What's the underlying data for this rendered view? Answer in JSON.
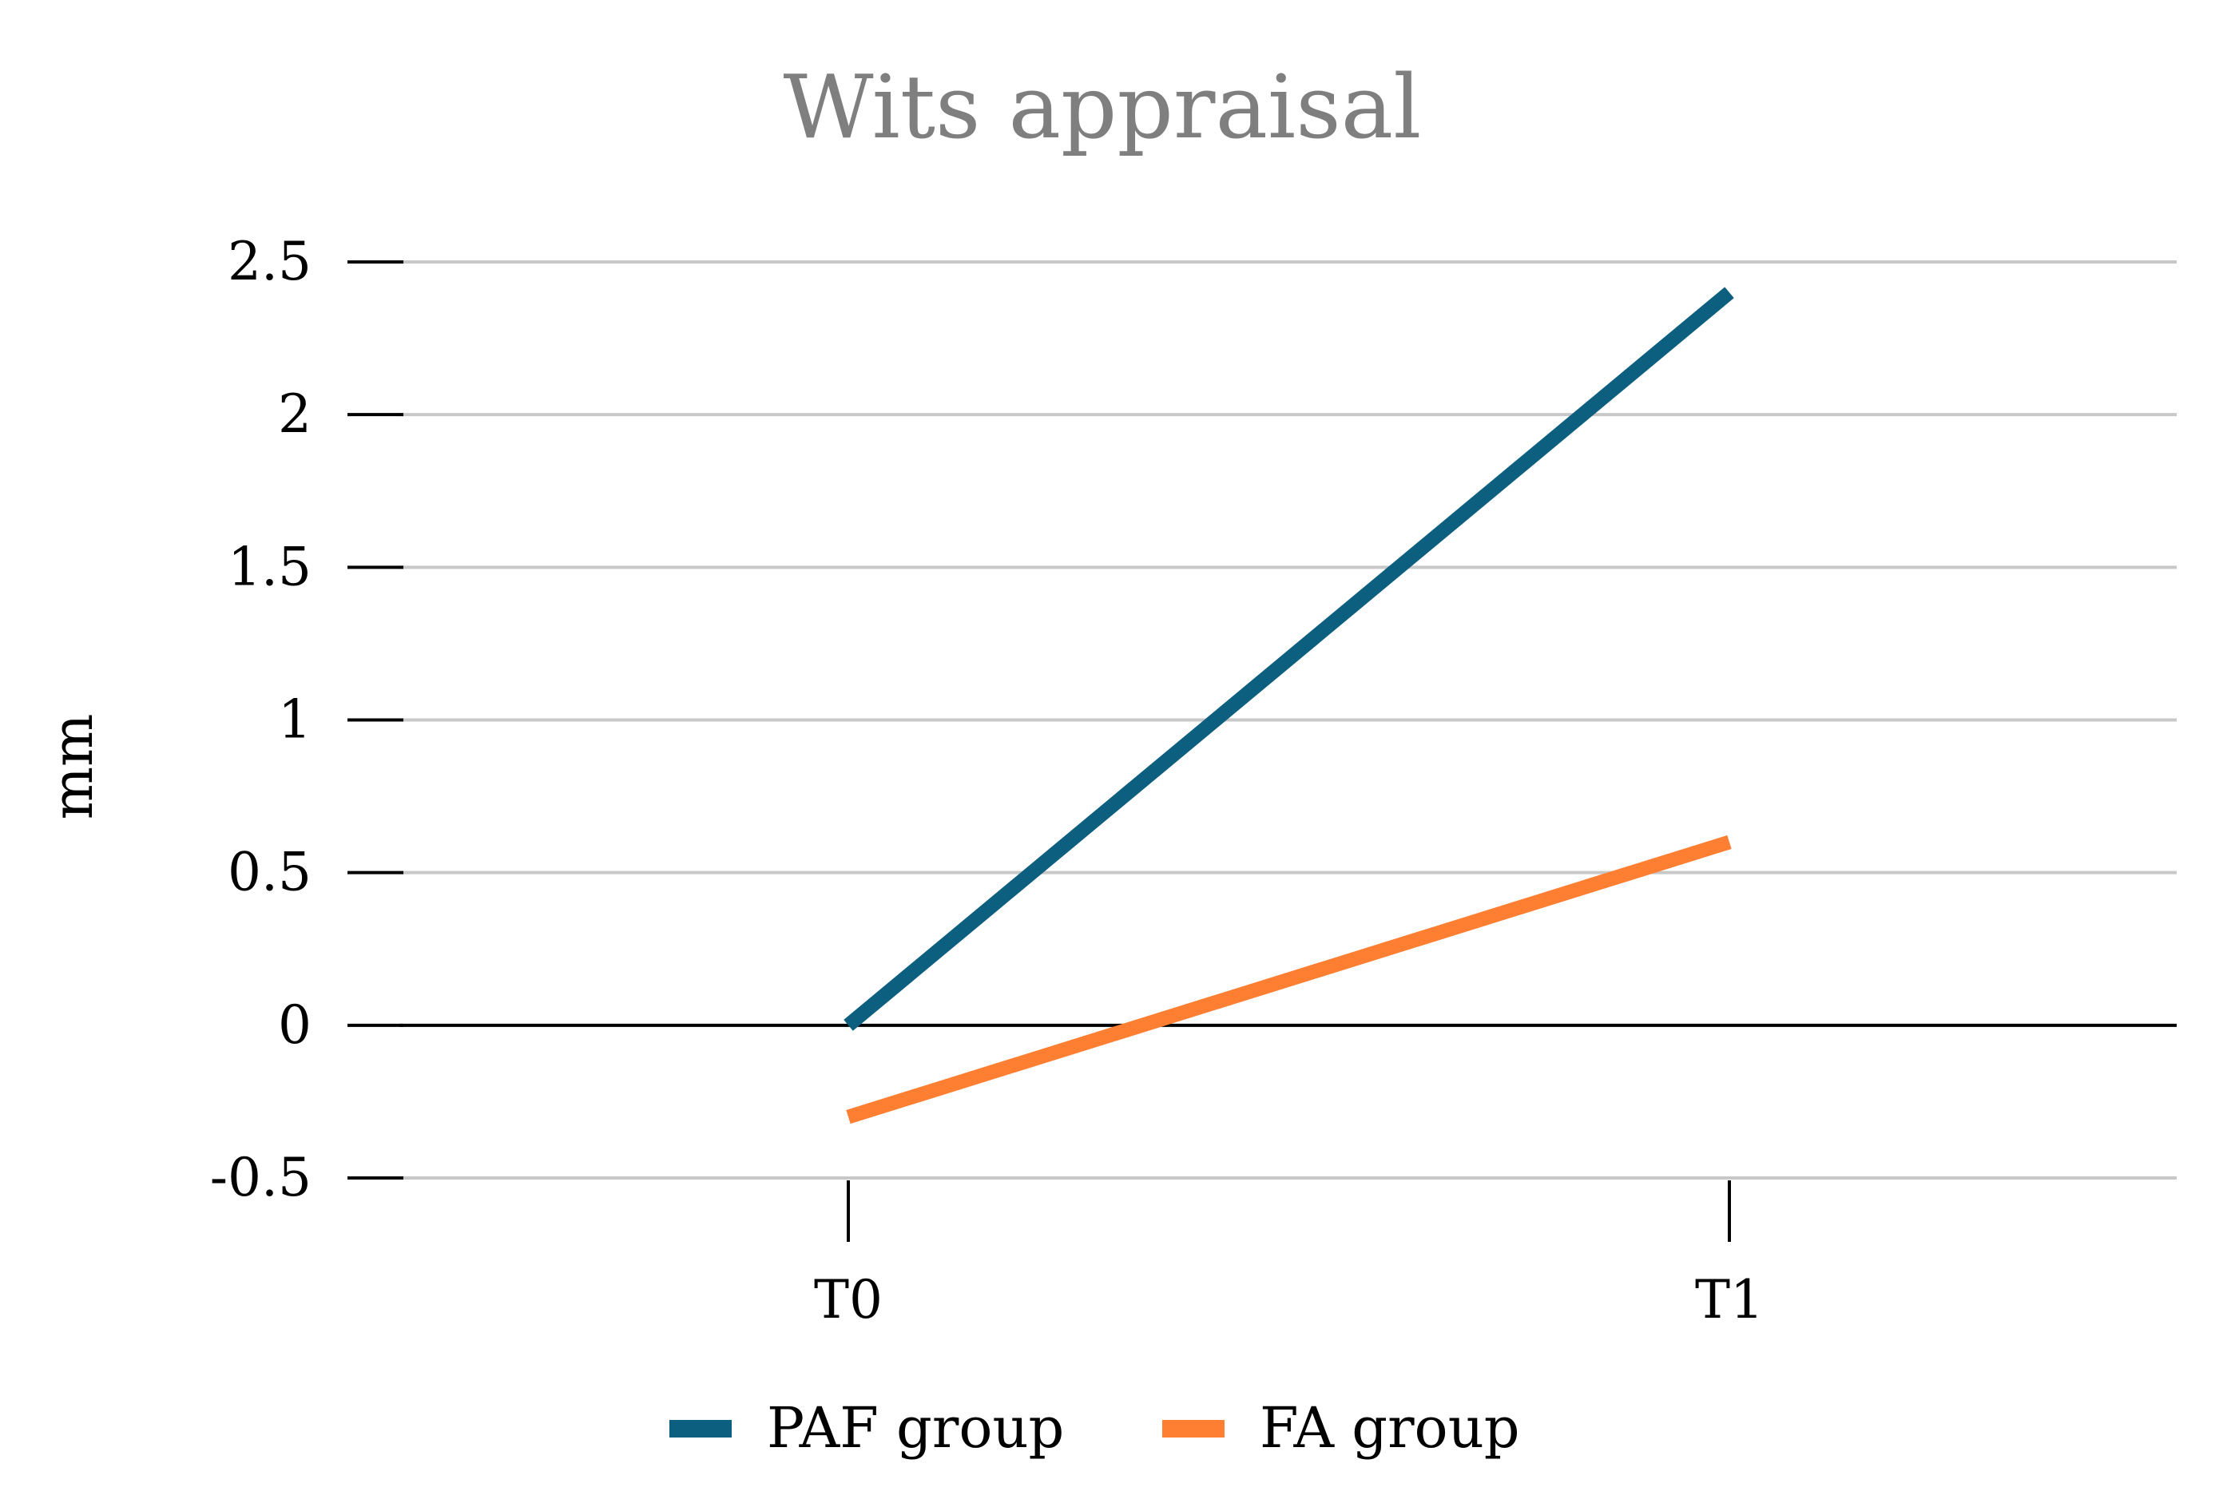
{
  "chart_data": {
    "type": "line",
    "title": "Wits appraisal",
    "xlabel": "",
    "ylabel": "mm",
    "categories": [
      "T0",
      "T1"
    ],
    "series": [
      {
        "name": "PAF group",
        "values": [
          0,
          2.4
        ],
        "color": "#0d5f7f"
      },
      {
        "name": "FA group",
        "values": [
          -0.3,
          0.6
        ],
        "color": "#ff7f32"
      }
    ],
    "ylim": [
      -0.5,
      2.5
    ],
    "yticks": [
      -0.5,
      0,
      0.5,
      1,
      1.5,
      2,
      2.5
    ],
    "ytick_labels": [
      "-0.5",
      "0",
      "0.5",
      "1",
      "1.5",
      "2",
      "2.5"
    ],
    "grid": true,
    "legend_position": "bottom",
    "colors": {
      "grid": "#c8c8c8",
      "zero_line": "#000000",
      "title": "#7f7f7f"
    }
  }
}
